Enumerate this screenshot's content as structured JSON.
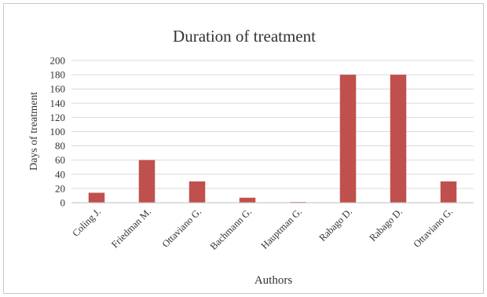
{
  "chart_data": {
    "type": "bar",
    "title": "Duration of treatment",
    "xlabel": "Authors",
    "ylabel": "Days of treatment",
    "categories": [
      "Coling J.",
      "Friedman M.",
      "Ottaviano G.",
      "Bachmann G.",
      "Hauptman G.",
      "Rabago D.",
      "Rabago D.",
      "Ottaviano G."
    ],
    "values": [
      14,
      60,
      30,
      7,
      1,
      180,
      180,
      30
    ],
    "ylim": [
      0,
      200
    ],
    "yticks": [
      "0",
      "20",
      "40",
      "60",
      "80",
      "100",
      "120",
      "140",
      "160",
      "180",
      "200"
    ],
    "grid": true,
    "legend": "none",
    "bar_color": "#c0504d",
    "grid_color": "#d9d9d9",
    "axis_color": "#bfbfbf"
  }
}
